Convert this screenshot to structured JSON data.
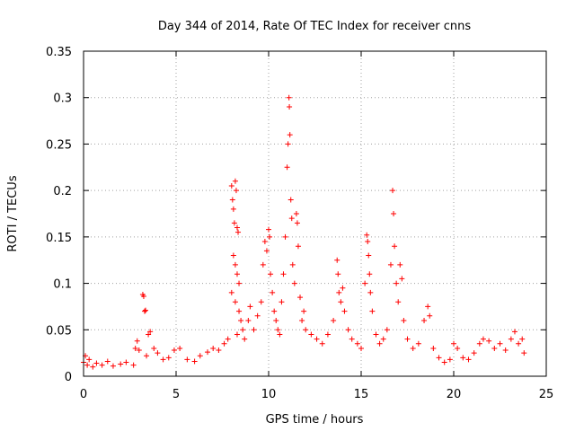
{
  "chart_data": {
    "type": "scatter",
    "title": "Day 344 of 2014, Rate Of TEC Index for receiver cnns",
    "xlabel": "GPS time / hours",
    "ylabel": "ROTI / TECUs",
    "xlim": [
      0,
      25
    ],
    "ylim": [
      0,
      0.35
    ],
    "xticks": [
      "0",
      "5",
      "10",
      "15",
      "20",
      "25"
    ],
    "yticks": [
      "0",
      "0.05",
      "0.1",
      "0.15",
      "0.2",
      "0.25",
      "0.3",
      "0.35"
    ],
    "grid": true,
    "marker": "+",
    "color": "#ff0000",
    "series": [
      {
        "name": "ROTI",
        "points": [
          [
            0.0,
            0.015
          ],
          [
            0.1,
            0.022
          ],
          [
            0.2,
            0.012
          ],
          [
            0.3,
            0.018
          ],
          [
            0.5,
            0.01
          ],
          [
            0.7,
            0.014
          ],
          [
            1.0,
            0.012
          ],
          [
            1.3,
            0.016
          ],
          [
            1.6,
            0.011
          ],
          [
            2.0,
            0.013
          ],
          [
            2.3,
            0.015
          ],
          [
            2.7,
            0.012
          ],
          [
            2.8,
            0.03
          ],
          [
            2.9,
            0.038
          ],
          [
            3.0,
            0.028
          ],
          [
            3.2,
            0.088
          ],
          [
            3.25,
            0.086
          ],
          [
            3.3,
            0.07
          ],
          [
            3.35,
            0.071
          ],
          [
            3.4,
            0.022
          ],
          [
            3.5,
            0.045
          ],
          [
            3.6,
            0.048
          ],
          [
            3.8,
            0.03
          ],
          [
            4.0,
            0.025
          ],
          [
            4.3,
            0.018
          ],
          [
            4.6,
            0.02
          ],
          [
            4.9,
            0.028
          ],
          [
            5.2,
            0.03
          ],
          [
            5.6,
            0.018
          ],
          [
            6.0,
            0.016
          ],
          [
            6.3,
            0.022
          ],
          [
            6.7,
            0.026
          ],
          [
            7.0,
            0.03
          ],
          [
            7.3,
            0.028
          ],
          [
            7.6,
            0.035
          ],
          [
            7.8,
            0.04
          ],
          [
            8.0,
            0.205
          ],
          [
            8.05,
            0.19
          ],
          [
            8.1,
            0.18
          ],
          [
            8.15,
            0.165
          ],
          [
            8.2,
            0.21
          ],
          [
            8.25,
            0.2
          ],
          [
            8.3,
            0.16
          ],
          [
            8.35,
            0.155
          ],
          [
            8.1,
            0.13
          ],
          [
            8.2,
            0.12
          ],
          [
            8.3,
            0.11
          ],
          [
            8.4,
            0.1
          ],
          [
            8.0,
            0.09
          ],
          [
            8.2,
            0.08
          ],
          [
            8.4,
            0.07
          ],
          [
            8.5,
            0.06
          ],
          [
            8.6,
            0.05
          ],
          [
            8.3,
            0.045
          ],
          [
            8.7,
            0.04
          ],
          [
            8.9,
            0.06
          ],
          [
            9.0,
            0.075
          ],
          [
            9.2,
            0.05
          ],
          [
            9.4,
            0.065
          ],
          [
            9.6,
            0.08
          ],
          [
            9.7,
            0.12
          ],
          [
            9.8,
            0.145
          ],
          [
            9.9,
            0.135
          ],
          [
            10.0,
            0.158
          ],
          [
            10.05,
            0.15
          ],
          [
            10.1,
            0.11
          ],
          [
            10.2,
            0.09
          ],
          [
            10.3,
            0.07
          ],
          [
            10.4,
            0.06
          ],
          [
            10.5,
            0.05
          ],
          [
            10.6,
            0.045
          ],
          [
            10.7,
            0.08
          ],
          [
            10.8,
            0.11
          ],
          [
            10.9,
            0.15
          ],
          [
            11.0,
            0.225
          ],
          [
            11.05,
            0.25
          ],
          [
            11.1,
            0.3
          ],
          [
            11.12,
            0.29
          ],
          [
            11.15,
            0.26
          ],
          [
            11.2,
            0.19
          ],
          [
            11.25,
            0.17
          ],
          [
            11.3,
            0.12
          ],
          [
            11.4,
            0.1
          ],
          [
            11.5,
            0.175
          ],
          [
            11.55,
            0.165
          ],
          [
            11.6,
            0.14
          ],
          [
            11.7,
            0.085
          ],
          [
            11.8,
            0.06
          ],
          [
            11.9,
            0.07
          ],
          [
            12.0,
            0.05
          ],
          [
            12.3,
            0.045
          ],
          [
            12.6,
            0.04
          ],
          [
            12.9,
            0.035
          ],
          [
            13.2,
            0.045
          ],
          [
            13.5,
            0.06
          ],
          [
            13.7,
            0.125
          ],
          [
            13.75,
            0.11
          ],
          [
            13.8,
            0.09
          ],
          [
            13.9,
            0.08
          ],
          [
            14.0,
            0.095
          ],
          [
            14.1,
            0.07
          ],
          [
            14.3,
            0.05
          ],
          [
            14.5,
            0.04
          ],
          [
            14.8,
            0.035
          ],
          [
            15.0,
            0.03
          ],
          [
            15.2,
            0.1
          ],
          [
            15.3,
            0.152
          ],
          [
            15.35,
            0.145
          ],
          [
            15.4,
            0.13
          ],
          [
            15.45,
            0.11
          ],
          [
            15.5,
            0.09
          ],
          [
            15.6,
            0.07
          ],
          [
            15.8,
            0.045
          ],
          [
            16.0,
            0.035
          ],
          [
            16.2,
            0.04
          ],
          [
            16.4,
            0.05
          ],
          [
            16.6,
            0.12
          ],
          [
            16.7,
            0.2
          ],
          [
            16.75,
            0.175
          ],
          [
            16.8,
            0.14
          ],
          [
            16.9,
            0.1
          ],
          [
            17.0,
            0.08
          ],
          [
            17.1,
            0.12
          ],
          [
            17.2,
            0.105
          ],
          [
            17.3,
            0.06
          ],
          [
            17.5,
            0.04
          ],
          [
            17.8,
            0.03
          ],
          [
            18.1,
            0.035
          ],
          [
            18.4,
            0.06
          ],
          [
            18.6,
            0.075
          ],
          [
            18.7,
            0.065
          ],
          [
            18.9,
            0.03
          ],
          [
            19.2,
            0.02
          ],
          [
            19.5,
            0.015
          ],
          [
            19.8,
            0.018
          ],
          [
            20.0,
            0.035
          ],
          [
            20.2,
            0.03
          ],
          [
            20.5,
            0.02
          ],
          [
            20.8,
            0.018
          ],
          [
            21.1,
            0.025
          ],
          [
            21.4,
            0.035
          ],
          [
            21.6,
            0.04
          ],
          [
            21.9,
            0.038
          ],
          [
            22.2,
            0.03
          ],
          [
            22.5,
            0.035
          ],
          [
            22.8,
            0.028
          ],
          [
            23.1,
            0.04
          ],
          [
            23.3,
            0.048
          ],
          [
            23.5,
            0.035
          ],
          [
            23.7,
            0.04
          ],
          [
            23.8,
            0.025
          ]
        ]
      }
    ]
  }
}
